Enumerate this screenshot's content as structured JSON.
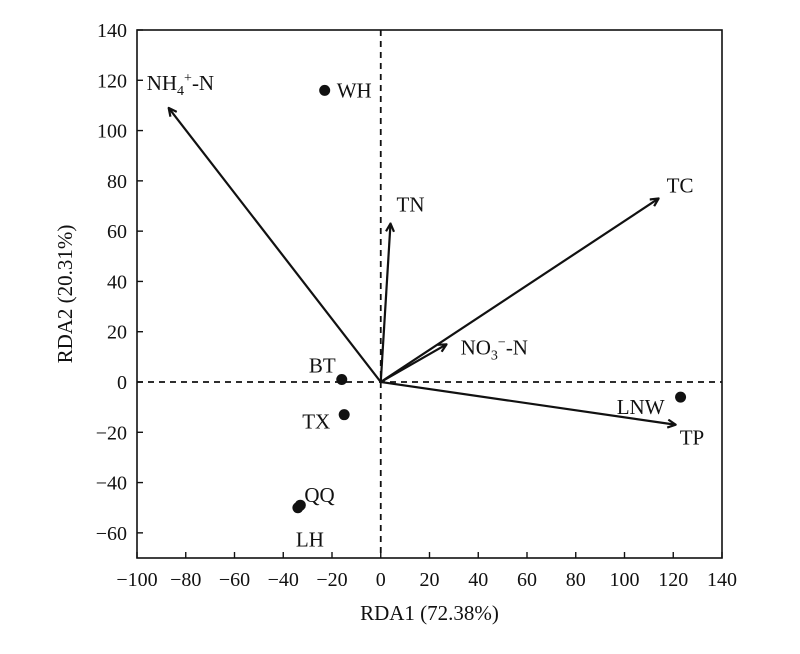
{
  "chart_data": {
    "type": "scatter",
    "subtype": "rda-biplot",
    "title": "",
    "xlabel": "RDA1 (72.38%)",
    "ylabel": "RDA2 (20.31%)",
    "xlim": [
      -100,
      140
    ],
    "ylim": [
      -70,
      140
    ],
    "x_ticks": [
      -100,
      -80,
      -60,
      -40,
      -20,
      0,
      20,
      40,
      60,
      80,
      100,
      120,
      140
    ],
    "y_ticks": [
      -60,
      -40,
      -20,
      0,
      20,
      40,
      60,
      80,
      100,
      120,
      140
    ],
    "x_tick_labels": [
      "−100",
      "−80",
      "−60",
      "−40",
      "−20",
      "0",
      "20",
      "40",
      "60",
      "80",
      "100",
      "120",
      "140"
    ],
    "y_tick_labels": [
      "−60",
      "−40",
      "−20",
      "0",
      "20",
      "40",
      "60",
      "80",
      "100",
      "120",
      "140"
    ],
    "grid": false,
    "reference_lines": [
      {
        "axis": "x",
        "value": 0,
        "style": "dashed"
      },
      {
        "axis": "y",
        "value": 0,
        "style": "dashed"
      }
    ],
    "points": [
      {
        "label": "WH",
        "x": -23,
        "y": 116
      },
      {
        "label": "BT",
        "x": -16,
        "y": 1
      },
      {
        "label": "TX",
        "x": -15,
        "y": -13
      },
      {
        "label": "QQ",
        "x": -33,
        "y": -49
      },
      {
        "label": "LH",
        "x": -34,
        "y": -50
      },
      {
        "label": "LNW",
        "x": 123,
        "y": -6
      }
    ],
    "vectors": [
      {
        "label": "NH4+-N",
        "label_base": "NH",
        "label_sub": "4",
        "label_sup": "+",
        "label_tail": "-N",
        "x": -87,
        "y": 109
      },
      {
        "label": "TN",
        "x": 4,
        "y": 63
      },
      {
        "label": "TC",
        "x": 114,
        "y": 73
      },
      {
        "label": "NO3−-N",
        "label_base": "NO",
        "label_sub": "3",
        "label_sup": "−",
        "label_tail": "-N",
        "x": 27,
        "y": 15
      },
      {
        "label": "TP",
        "x": 121,
        "y": -17
      }
    ]
  }
}
